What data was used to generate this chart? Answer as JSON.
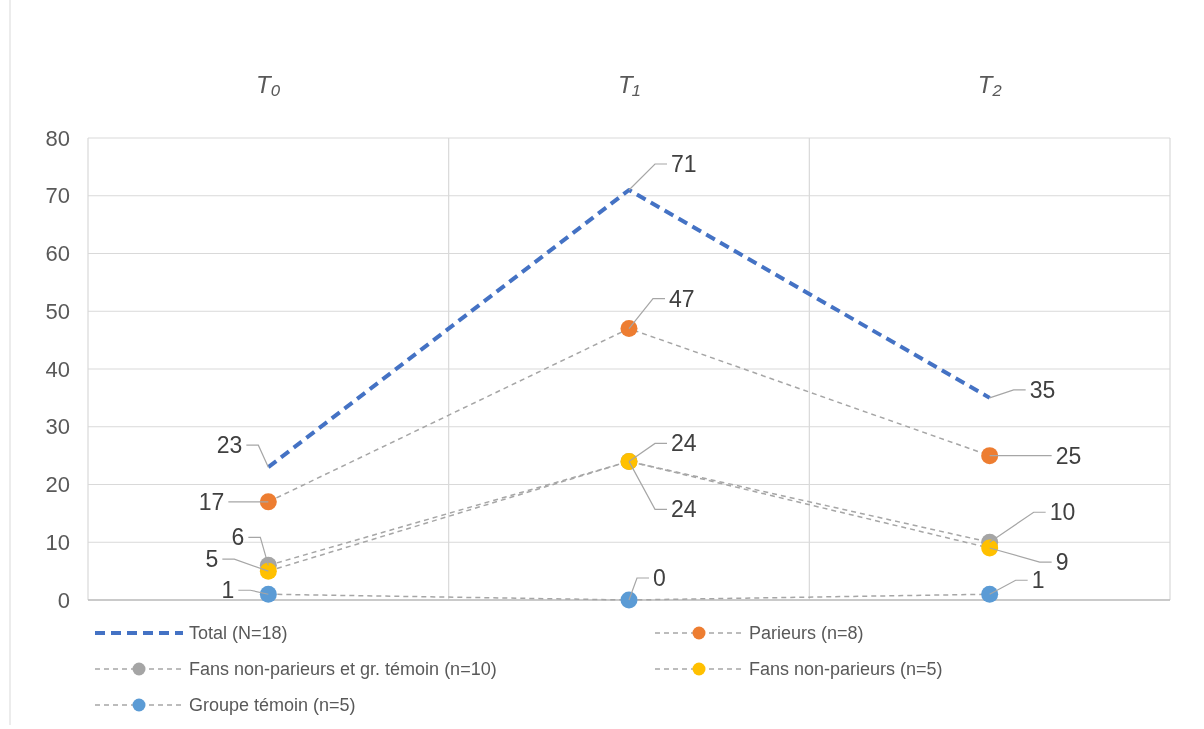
{
  "chart_data": {
    "type": "line",
    "categories": [
      "T₀",
      "T₁",
      "T₂"
    ],
    "series": [
      {
        "name": "Total (N=18)",
        "color": "#4472c4",
        "values": [
          23,
          71,
          35
        ],
        "marker": "none",
        "line_style": "dashed"
      },
      {
        "name": "Parieurs (n=8)",
        "color": "#ed7d31",
        "values": [
          17,
          47,
          25
        ],
        "marker": "circle",
        "line_style": "dashed"
      },
      {
        "name": "Fans non-parieurs et gr. témoin (n=10)",
        "color": "#a5a5a5",
        "values": [
          6,
          24,
          10
        ],
        "marker": "circle",
        "line_style": "dashed"
      },
      {
        "name": "Fans non-parieurs (n=5)",
        "color": "#ffc000",
        "values": [
          5,
          24,
          9
        ],
        "marker": "circle",
        "line_style": "dashed"
      },
      {
        "name": "Groupe témoin (n=5)",
        "color": "#5b9bd5",
        "values": [
          1,
          0,
          1
        ],
        "marker": "circle",
        "line_style": "dashed"
      }
    ],
    "ylim": [
      0,
      80
    ],
    "yticks": [
      0,
      10,
      20,
      30,
      40,
      50,
      60,
      70,
      80
    ],
    "grid": true,
    "legend": "bottom",
    "data_labels": true
  }
}
